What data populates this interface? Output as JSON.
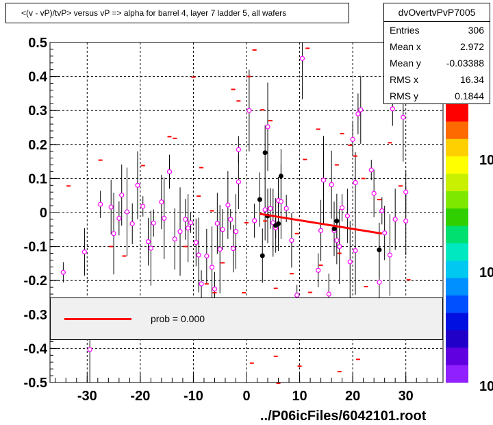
{
  "title": "<(v - vP)/tvP> versus   vP => alpha for barrel 4, layer 7 ladder 5, all wafers",
  "stats": {
    "name": "dvOvertvPvP7005",
    "rows": [
      {
        "label": "Entries",
        "value": "306"
      },
      {
        "label": "Mean x",
        "value": "2.972"
      },
      {
        "label": "Mean y",
        "value": "-0.03388"
      },
      {
        "label": "RMS x",
        "value": "16.34"
      },
      {
        "label": "RMS y",
        "value": "0.1844"
      }
    ]
  },
  "legend": {
    "label": "prob = 0.000"
  },
  "footer": "../P06icFiles/6042101.root",
  "colors": {
    "fit": "#ff0000",
    "marker_open": "#ff00ff",
    "marker_bin": "#ff0000",
    "profile": "#000000"
  },
  "chart_data": {
    "type": "scatter",
    "title": "<(v - vP)/tvP> versus   vP => alpha for barrel 4, layer 7 ladder 5, all wafers",
    "xlim": [
      -37,
      37
    ],
    "ylim": [
      -0.5,
      0.5
    ],
    "x_ticks": [
      -30,
      -20,
      -10,
      0,
      10,
      20,
      30
    ],
    "y_ticks": [
      -0.5,
      -0.4,
      -0.3,
      -0.2,
      -0.1,
      0,
      0.1,
      0.2,
      0.3,
      0.4,
      0.5
    ],
    "grid": true,
    "palette_labels": [
      "10",
      "10",
      "10"
    ],
    "open_points": [
      {
        "x": -34.5,
        "y": -0.176
      },
      {
        "x": -30.5,
        "y": -0.116
      },
      {
        "x": -29.5,
        "y": -0.403
      },
      {
        "x": -27.5,
        "y": 0.024
      },
      {
        "x": -25.5,
        "y": 0.016
      },
      {
        "x": -25,
        "y": -0.062
      },
      {
        "x": -24,
        "y": -0.017
      },
      {
        "x": -23.5,
        "y": 0.051
      },
      {
        "x": -22.5,
        "y": 0.002
      },
      {
        "x": -21.5,
        "y": -0.033
      },
      {
        "x": -20.5,
        "y": 0.08
      },
      {
        "x": -19.5,
        "y": 0.018
      },
      {
        "x": -18.5,
        "y": -0.086
      },
      {
        "x": -18,
        "y": -0.105
      },
      {
        "x": -17.5,
        "y": -0.031
      },
      {
        "x": -16,
        "y": 0.031
      },
      {
        "x": -15.5,
        "y": -0.017
      },
      {
        "x": -14.5,
        "y": 0.12
      },
      {
        "x": -13.5,
        "y": -0.078
      },
      {
        "x": -12.5,
        "y": -0.056
      },
      {
        "x": -11.5,
        "y": -0.02
      },
      {
        "x": -11,
        "y": -0.046
      },
      {
        "x": -10.5,
        "y": -0.03
      },
      {
        "x": -9.5,
        "y": -0.088
      },
      {
        "x": -9,
        "y": -0.125
      },
      {
        "x": -8.5,
        "y": -0.21
      },
      {
        "x": -7.5,
        "y": -0.128
      },
      {
        "x": -6.5,
        "y": -0.161
      },
      {
        "x": -6,
        "y": -0.225
      },
      {
        "x": -5.5,
        "y": -0.032
      },
      {
        "x": -5,
        "y": -0.108
      },
      {
        "x": -4.5,
        "y": -0.05
      },
      {
        "x": -3.5,
        "y": 0.022
      },
      {
        "x": -3,
        "y": -0.02
      },
      {
        "x": -2.5,
        "y": -0.106
      },
      {
        "x": -2,
        "y": -0.056
      },
      {
        "x": -1.5,
        "y": 0.185
      },
      {
        "x": -1.5,
        "y": 0.09
      },
      {
        "x": 0.5,
        "y": 0.3
      },
      {
        "x": 1.5,
        "y": -0.024
      },
      {
        "x": 3.5,
        "y": 0.008
      },
      {
        "x": 4,
        "y": 0.252
      },
      {
        "x": 4.5,
        "y": 0.012
      },
      {
        "x": 5,
        "y": -0.03
      },
      {
        "x": 5.5,
        "y": -0.045
      },
      {
        "x": 6,
        "y": 0.035
      },
      {
        "x": 6.5,
        "y": 0.032
      },
      {
        "x": 7.5,
        "y": 0.012
      },
      {
        "x": 8.5,
        "y": -0.082
      },
      {
        "x": 10.5,
        "y": 0.453
      },
      {
        "x": 13.5,
        "y": -0.17
      },
      {
        "x": 14,
        "y": -0.053
      },
      {
        "x": 14.5,
        "y": 0.095
      },
      {
        "x": 15.5,
        "y": -0.24
      },
      {
        "x": 16,
        "y": 0.082
      },
      {
        "x": 16.5,
        "y": -0.053
      },
      {
        "x": 17,
        "y": -0.082
      },
      {
        "x": 17.5,
        "y": -0.1
      },
      {
        "x": 18,
        "y": 0.014
      },
      {
        "x": 19,
        "y": -0.01
      },
      {
        "x": 19.5,
        "y": -0.145
      },
      {
        "x": 20,
        "y": 0.215
      },
      {
        "x": 20.5,
        "y": 0.088
      },
      {
        "x": 20.5,
        "y": -0.112
      },
      {
        "x": 21,
        "y": 0.29
      },
      {
        "x": 21.5,
        "y": 0.302
      },
      {
        "x": 23.5,
        "y": 0.125
      },
      {
        "x": 24,
        "y": 0.056
      },
      {
        "x": 25,
        "y": -0.205
      },
      {
        "x": 25.5,
        "y": 0.005
      },
      {
        "x": 26,
        "y": -0.06
      },
      {
        "x": 27,
        "y": -0.125
      },
      {
        "x": 27.5,
        "y": 0.305
      },
      {
        "x": 28,
        "y": -0.02
      },
      {
        "x": 29.5,
        "y": 0.28
      },
      {
        "x": 30,
        "y": 0.06
      },
      {
        "x": 30,
        "y": -0.025
      },
      {
        "x": 9.5,
        "y": -0.243
      }
    ],
    "bin_markers": [
      {
        "x": 11.5,
        "y": 0.483
      },
      {
        "x": 1.5,
        "y": 0.478
      },
      {
        "x": 0.5,
        "y": 0.4
      },
      {
        "x": -10,
        "y": 0.398
      },
      {
        "x": -2.5,
        "y": 0.362
      },
      {
        "x": -1.5,
        "y": 0.328
      },
      {
        "x": 3,
        "y": 0.302
      },
      {
        "x": 4.5,
        "y": 0.27
      },
      {
        "x": -14.5,
        "y": 0.223
      },
      {
        "x": -13.5,
        "y": 0.218
      },
      {
        "x": 13.5,
        "y": 0.245
      },
      {
        "x": 18,
        "y": 0.232
      },
      {
        "x": 19.5,
        "y": 0.198
      },
      {
        "x": 20.5,
        "y": 0.166
      },
      {
        "x": 11,
        "y": 0.156
      },
      {
        "x": -27.5,
        "y": 0.154
      },
      {
        "x": -19.5,
        "y": 0.138
      },
      {
        "x": -8.5,
        "y": 0.132
      },
      {
        "x": 27,
        "y": 0.205
      },
      {
        "x": 17,
        "y": 0.14
      },
      {
        "x": 22,
        "y": 0.1
      },
      {
        "x": -33.5,
        "y": 0.078
      },
      {
        "x": -9,
        "y": 0.048
      },
      {
        "x": 25,
        "y": 0.038
      },
      {
        "x": 29,
        "y": 0.078
      },
      {
        "x": -6.5,
        "y": 0.005
      },
      {
        "x": 3.5,
        "y": -0.025
      },
      {
        "x": 9.5,
        "y": -0.062
      },
      {
        "x": -25.5,
        "y": -0.1
      },
      {
        "x": -23,
        "y": -0.128
      },
      {
        "x": -11.5,
        "y": -0.1
      },
      {
        "x": -4.5,
        "y": -0.148
      },
      {
        "x": 0,
        "y": -0.03
      },
      {
        "x": 14,
        "y": -0.155
      },
      {
        "x": 17.5,
        "y": -0.12
      },
      {
        "x": 8.5,
        "y": -0.18
      },
      {
        "x": -7.5,
        "y": -0.21
      },
      {
        "x": -6,
        "y": -0.236
      },
      {
        "x": -0.5,
        "y": -0.236
      },
      {
        "x": 5.5,
        "y": -0.223
      },
      {
        "x": 12,
        "y": -0.235
      },
      {
        "x": 22.5,
        "y": -0.218
      },
      {
        "x": 30.5,
        "y": -0.198
      },
      {
        "x": 5.5,
        "y": -0.423
      },
      {
        "x": 1,
        "y": -0.443
      },
      {
        "x": 10,
        "y": -0.452
      },
      {
        "x": 17.5,
        "y": -0.468
      },
      {
        "x": 21,
        "y": -0.432
      },
      {
        "x": 6,
        "y": -0.502
      }
    ],
    "profile_points": [
      {
        "x": 2.5,
        "y": 0.038
      },
      {
        "x": 3,
        "y": -0.127
      },
      {
        "x": 3.5,
        "y": 0.176
      },
      {
        "x": 4,
        "y": -0.01
      },
      {
        "x": 5.5,
        "y": -0.038
      },
      {
        "x": 6,
        "y": -0.033
      },
      {
        "x": 6.5,
        "y": 0.107
      },
      {
        "x": 16.5,
        "y": -0.048
      },
      {
        "x": 17,
        "y": -0.025
      },
      {
        "x": 25,
        "y": -0.11
      }
    ],
    "fit_line": {
      "x": [
        2.5,
        25.5
      ],
      "y": [
        -0.004,
        -0.062
      ]
    }
  }
}
